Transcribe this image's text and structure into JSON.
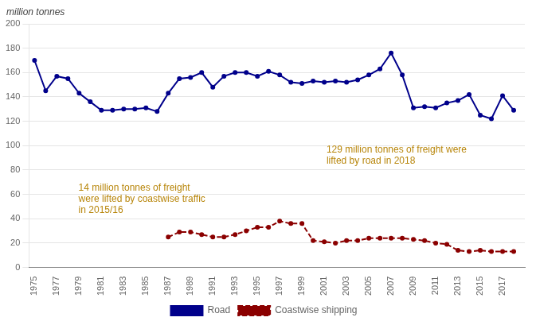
{
  "chart_data": {
    "type": "line",
    "y_label": "million tonnes",
    "series": [
      {
        "name": "Road",
        "color": "#00008B",
        "marker": "circle",
        "line_style": "solid",
        "x": [
          1975,
          1976,
          1977,
          1978,
          1979,
          1980,
          1981,
          1982,
          1983,
          1984,
          1985,
          1986,
          1987,
          1988,
          1989,
          1990,
          1991,
          1992,
          1993,
          1994,
          1995,
          1996,
          1997,
          1998,
          1999,
          2000,
          2001,
          2002,
          2003,
          2004,
          2005,
          2006,
          2007,
          2008,
          2009,
          2010,
          2011,
          2012,
          2013,
          2014,
          2015,
          2016,
          2017,
          2018
        ],
        "values": [
          170,
          145,
          157,
          155,
          143,
          136,
          129,
          129,
          130,
          130,
          131,
          128,
          143,
          155,
          156,
          160,
          148,
          157,
          160,
          160,
          157,
          161,
          158,
          152,
          151,
          153,
          152,
          153,
          152,
          154,
          158,
          163,
          176,
          158,
          131,
          132,
          131,
          135,
          137,
          142,
          125,
          122,
          141,
          129
        ]
      },
      {
        "name": "Coastwise shipping",
        "color": "#8B0000",
        "marker": "circle",
        "line_style": "dashed",
        "x": [
          1987,
          1988,
          1989,
          1990,
          1991,
          1992,
          1993,
          1994,
          1995,
          1996,
          1997,
          1998,
          1999,
          2000,
          2001,
          2002,
          2003,
          2004,
          2005,
          2006,
          2007,
          2008,
          2009,
          2010,
          2011,
          2012,
          2013,
          2014,
          2015,
          2016,
          2017,
          2018
        ],
        "values": [
          25,
          29,
          29,
          27,
          25,
          25,
          27,
          30,
          33,
          33,
          38,
          36,
          36,
          22,
          21,
          20,
          22,
          22,
          24,
          24,
          24,
          24,
          23,
          22,
          20,
          19,
          14,
          13,
          14,
          13,
          13,
          13
        ]
      }
    ],
    "annotations": [
      {
        "text": "14 million tonnes of freight\nwere lifted by coastwise traffic\nin 2015/16",
        "color": "#B8860B"
      },
      {
        "text": "129 million tonnes of freight were\nlifted by road in 2018",
        "color": "#B8860B"
      }
    ],
    "xlim": [
      1974.5,
      2019
    ],
    "xticks": [
      1975,
      1977,
      1979,
      1981,
      1983,
      1985,
      1987,
      1989,
      1991,
      1993,
      1995,
      1997,
      1999,
      2001,
      2003,
      2005,
      2007,
      2009,
      2011,
      2013,
      2015,
      2017
    ],
    "ylim": [
      0,
      200
    ],
    "yticks": [
      0,
      20,
      40,
      60,
      80,
      100,
      120,
      140,
      160,
      180,
      200
    ],
    "grid": "y",
    "legend": "bottom"
  }
}
